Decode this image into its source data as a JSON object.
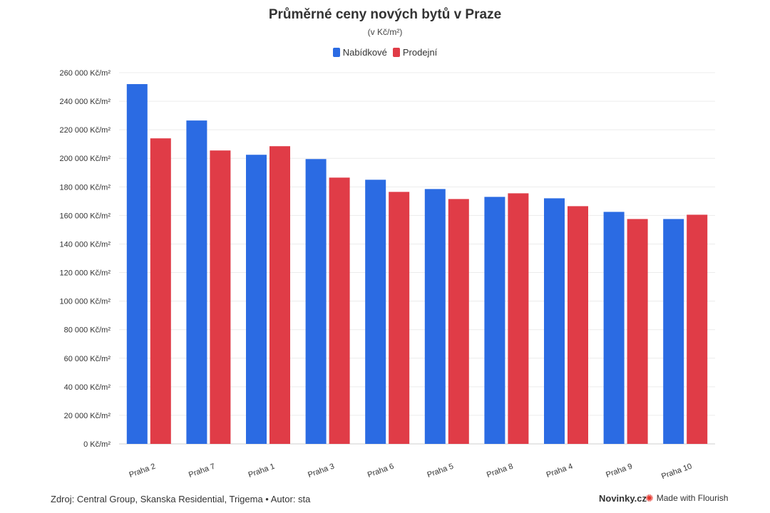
{
  "chart_data": {
    "type": "bar",
    "title": "Průměrné ceny nových bytů v Praze",
    "subtitle": "(v Kč/m²)",
    "categories": [
      "Praha 2",
      "Praha 7",
      "Praha 1",
      "Praha 3",
      "Praha 6",
      "Praha 5",
      "Praha 8",
      "Praha 4",
      "Praha 9",
      "Praha 10"
    ],
    "series": [
      {
        "name": "Nabídkové",
        "color": "#2b6be3",
        "values": [
          252000,
          226500,
          202500,
          199500,
          185000,
          178500,
          173000,
          172000,
          162500,
          157500
        ]
      },
      {
        "name": "Prodejní",
        "color": "#e03c47",
        "values": [
          214000,
          205500,
          208500,
          186500,
          176500,
          171500,
          175500,
          166500,
          157500,
          160500
        ]
      }
    ],
    "ylim": [
      0,
      260000
    ],
    "yticks": [
      "0 Kč/m²",
      "20 000 Kč/m²",
      "40 000 Kč/m²",
      "60 000 Kč/m²",
      "80 000 Kč/m²",
      "100 000 Kč/m²",
      "120 000 Kč/m²",
      "140 000 Kč/m²",
      "160 000 Kč/m²",
      "180 000 Kč/m²",
      "200 000 Kč/m²",
      "220 000 Kč/m²",
      "240 000 Kč/m²",
      "260 000 Kč/m²"
    ],
    "grid": true,
    "legend_position": "top-center"
  },
  "footer": {
    "source": "Zdroj: Central Group, Skanska Residential, Trigema • Autor: sta",
    "brand": "Novinky.cz",
    "credit": "Made with Flourish"
  }
}
